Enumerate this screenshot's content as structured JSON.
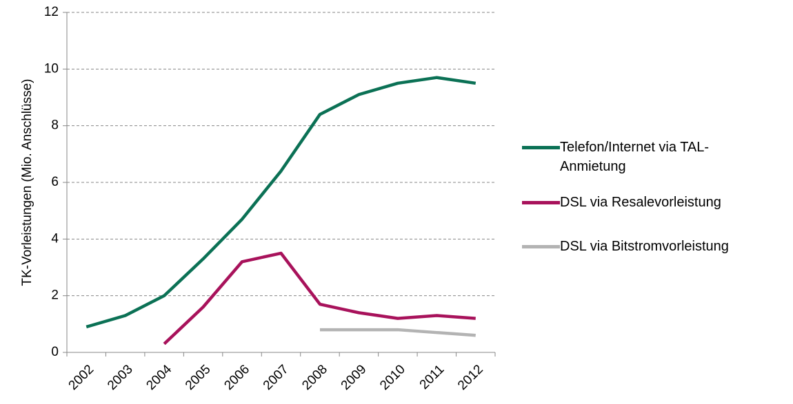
{
  "chart_data": {
    "type": "line",
    "y_label": "TK-Vorleistungen (Mio. Anschlüsse)",
    "categories": [
      "2002",
      "2003",
      "2004",
      "2005",
      "2006",
      "2007",
      "2008",
      "2009",
      "2010",
      "2011",
      "2012"
    ],
    "series": [
      {
        "name": "Telefon/Internet via TAL-Anmietung",
        "color": "#0b7155",
        "values": [
          0.9,
          1.3,
          2.0,
          3.3,
          4.7,
          6.4,
          8.4,
          9.1,
          9.5,
          9.7,
          9.5
        ]
      },
      {
        "name": "DSL via Resalevorleistung",
        "color": "#a8125b",
        "values": [
          null,
          null,
          0.3,
          1.6,
          3.2,
          3.5,
          1.7,
          1.4,
          1.2,
          1.3,
          1.2
        ]
      },
      {
        "name": "DSL via Bitstromvorleistung",
        "color": "#b3b3b3",
        "values": [
          null,
          null,
          null,
          null,
          null,
          null,
          0.8,
          0.8,
          0.8,
          0.7,
          0.6
        ]
      }
    ],
    "ylim": [
      0,
      12
    ],
    "yticks": [
      0,
      2,
      4,
      6,
      8,
      10,
      12
    ],
    "grid": true,
    "legend": "right"
  }
}
